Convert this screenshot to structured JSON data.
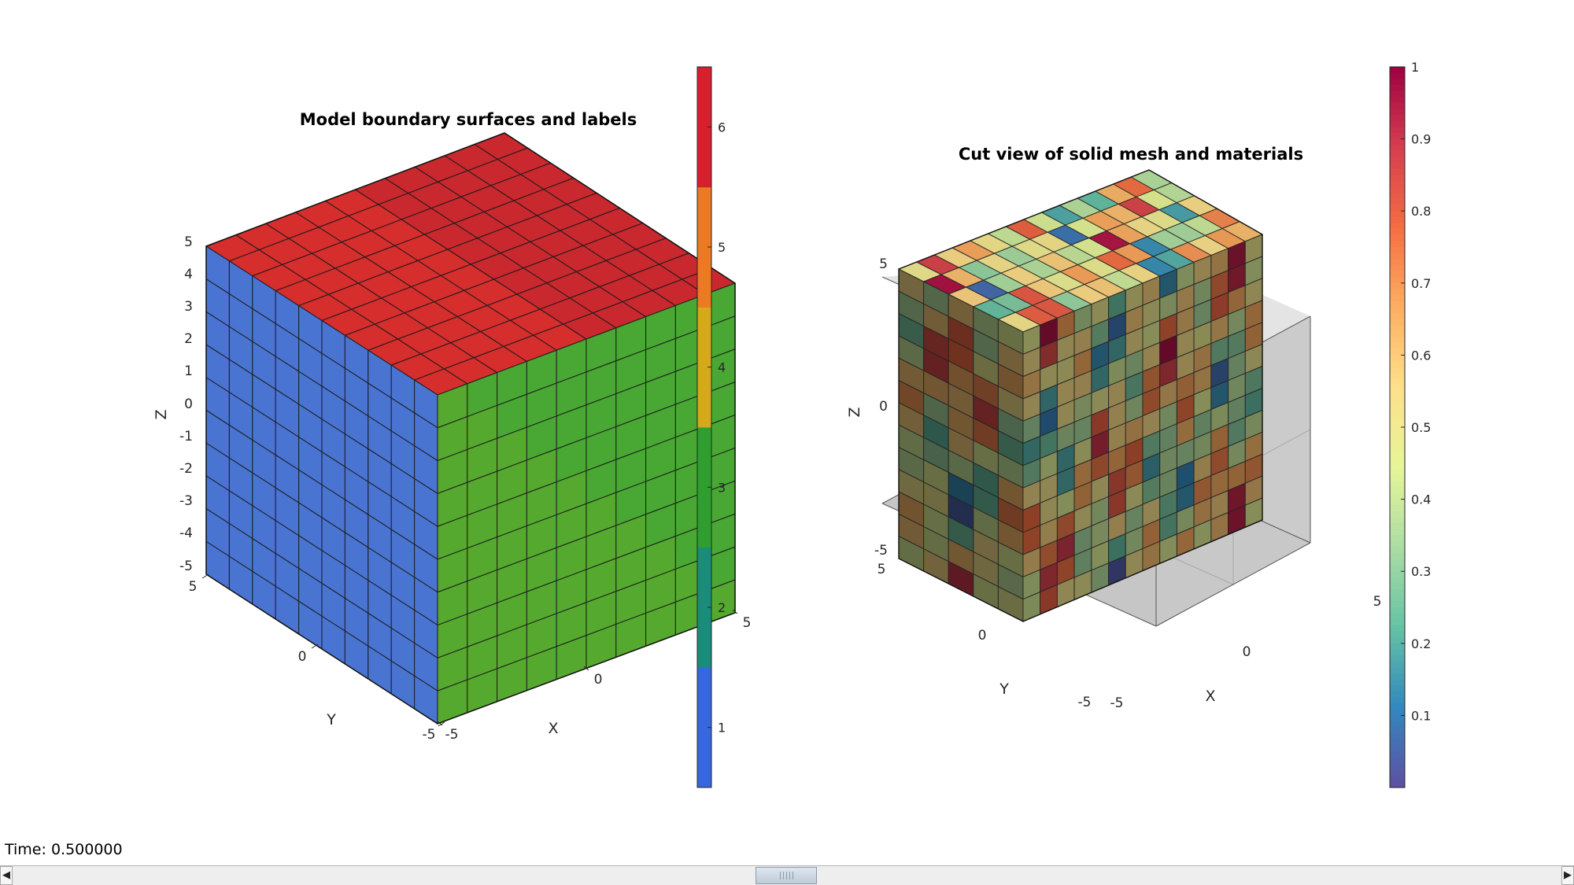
{
  "window": {
    "status_text": "Time: 0.500000"
  },
  "left_axes": {
    "title": "Model boundary surfaces and labels",
    "xlabel": "X",
    "ylabel": "Y",
    "zlabel": "Z",
    "x_ticks": [
      "-5",
      "0",
      "5"
    ],
    "y_ticks": [
      "-5",
      "0",
      "5"
    ],
    "z_ticks": [
      "5",
      "4",
      "3",
      "2",
      "1",
      "0",
      "-1",
      "-2",
      "-3",
      "-4",
      "-5"
    ],
    "colorbar": {
      "ticks": [
        "6",
        "5",
        "4",
        "3",
        "2",
        "1"
      ]
    },
    "face_colors": {
      "top": "#d62d2d",
      "left": "#4a74d2",
      "right": "#48a833"
    }
  },
  "right_axes": {
    "title": "Cut view of solid mesh and materials",
    "xlabel": "X",
    "ylabel": "Y",
    "zlabel": "Z",
    "x_ticks": [
      "-5",
      "0",
      "5"
    ],
    "y_ticks": [
      "-5",
      "0",
      "5"
    ],
    "z_ticks": [
      "5",
      "0",
      "-5"
    ],
    "colorbar": {
      "ticks": [
        "1",
        "0.9",
        "0.8",
        "0.7",
        "0.6",
        "0.5",
        "0.4",
        "0.3",
        "0.2",
        "0.1"
      ]
    }
  },
  "chart_data": [
    {
      "type": "3d-surface",
      "title": "Model boundary surfaces and labels",
      "xlabel": "X",
      "ylabel": "Y",
      "zlabel": "Z",
      "xlim": [
        -5,
        5
      ],
      "ylim": [
        -5,
        5
      ],
      "zlim": [
        -5,
        5
      ],
      "mesh_divisions": 10,
      "boundary_labels": [
        1,
        2,
        3,
        4,
        5,
        6
      ],
      "colorbar_range": [
        0.5,
        6.5
      ],
      "colorbar_colors": [
        "#3567de",
        "#1a8c7a",
        "#2e9f2e",
        "#d4a91c",
        "#eb7a22",
        "#d6202e"
      ]
    },
    {
      "type": "3d-mesh",
      "title": "Cut view of solid mesh and materials",
      "xlabel": "X",
      "ylabel": "Y",
      "zlabel": "Z",
      "xlim": [
        -5,
        5
      ],
      "ylim": [
        -5,
        5
      ],
      "zlim": [
        -5,
        5
      ],
      "colorbar_range": [
        0,
        1
      ],
      "colormap": [
        "#5e4fa2",
        "#3288bd",
        "#66c2a5",
        "#abdda4",
        "#e6f598",
        "#fee08b",
        "#fdae61",
        "#f46d43",
        "#d53e4f",
        "#9e0142"
      ]
    }
  ]
}
